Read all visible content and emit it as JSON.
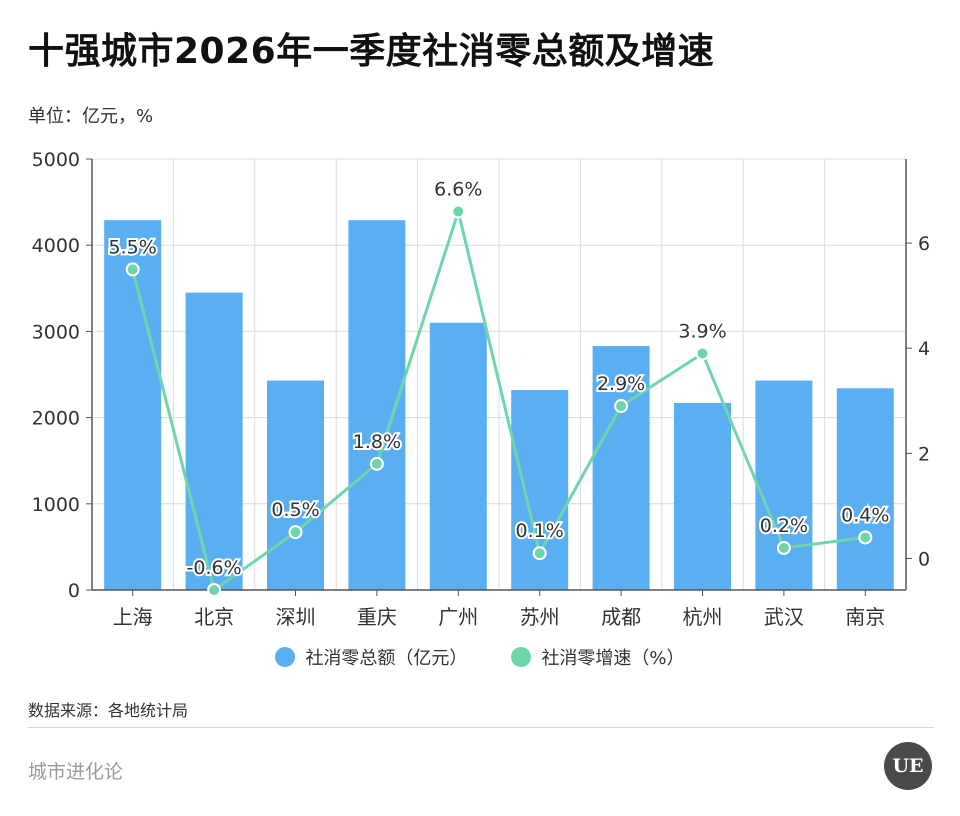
{
  "title": "十强城市2026年一季度社消零总额及增速",
  "unit_label": "单位：亿元，%",
  "source": "数据来源：各地统计局",
  "brand": "城市进化论",
  "logo_text": "UE",
  "colors": {
    "bar": "#5aaef2",
    "line": "#6fd6ab",
    "grid": "#dcdcdc",
    "axis": "#555555"
  },
  "legend": [
    {
      "label": "社消零总额（亿元）",
      "color": "#5aaef2"
    },
    {
      "label": "社消零增速（%）",
      "color": "#6fd6ab"
    }
  ],
  "chart_data": {
    "type": "bar",
    "categories": [
      "上海",
      "北京",
      "深圳",
      "重庆",
      "广州",
      "苏州",
      "成都",
      "杭州",
      "武汉",
      "南京"
    ],
    "series": [
      {
        "name": "社消零总额（亿元）",
        "type": "bar",
        "axis": "left",
        "values": [
          4290,
          3450,
          2430,
          4290,
          3100,
          2320,
          2830,
          2170,
          2430,
          2340
        ]
      },
      {
        "name": "社消零增速（%）",
        "type": "line",
        "axis": "right",
        "values": [
          5.5,
          -0.6,
          0.5,
          1.8,
          6.6,
          0.1,
          2.9,
          3.9,
          0.2,
          0.4
        ],
        "labels": [
          "5.5%",
          "-0.6%",
          "0.5%",
          "1.8%",
          "6.6%",
          "0.1%",
          "2.9%",
          "3.9%",
          "0.2%",
          "0.4%"
        ]
      }
    ],
    "y_left": {
      "ylim": [
        0,
        5000
      ],
      "ticks": [
        "0",
        "1000",
        "2000",
        "3000",
        "4000",
        "5000"
      ]
    },
    "y_right": {
      "ylim": [
        -0.6,
        7.6
      ],
      "ticks": [
        "0",
        "2",
        "4",
        "6"
      ]
    },
    "grid": true,
    "legend_position": "bottom"
  }
}
